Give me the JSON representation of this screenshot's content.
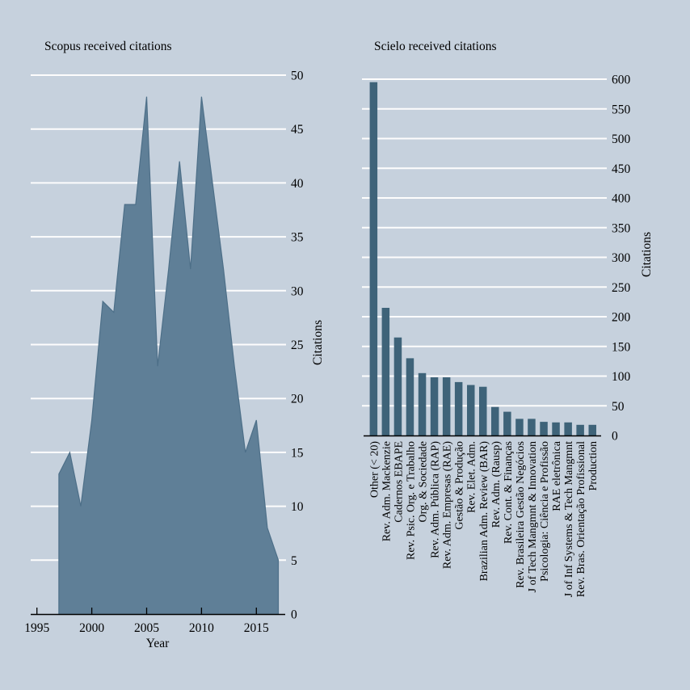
{
  "page": {
    "background": "#c6d1dd"
  },
  "colors": {
    "area_fill": "#5f7f97",
    "area_stroke": "#4d6f88",
    "bar_fill": "#3e6379",
    "gridline": "#fdfdfd",
    "axis": "#000000",
    "text": "#000000"
  },
  "chart_data": [
    {
      "type": "area",
      "title": "Scopus received citations",
      "xlabel": "Year",
      "ylabel": "Citations",
      "x": [
        1997,
        1998,
        1999,
        2000,
        2001,
        2002,
        2003,
        2004,
        2005,
        2006,
        2007,
        2008,
        2009,
        2010,
        2011,
        2012,
        2013,
        2014,
        2015,
        2016,
        2017
      ],
      "values": [
        13,
        15,
        10,
        18,
        29,
        28,
        38,
        38,
        48,
        23,
        32,
        42,
        32,
        48,
        40,
        32,
        23,
        15,
        18,
        8,
        5
      ],
      "xlim": [
        1995,
        2017.4
      ],
      "ylim": [
        0,
        50
      ],
      "xticks": [
        1995,
        2000,
        2005,
        2010,
        2015
      ],
      "yticks": [
        0,
        5,
        10,
        15,
        20,
        25,
        30,
        35,
        40,
        45,
        50
      ],
      "grid": "horizontal",
      "legend": "none"
    },
    {
      "type": "bar",
      "title": "Scielo received citations",
      "xlabel": "",
      "ylabel": "Citations",
      "categories": [
        "Other (< 20)",
        "Rev. Adm. Mackenzie",
        "Cadernos EBAPE",
        "Rev. Psic. Org. e Trabalho",
        "Org. & Sociedade",
        "Rev. Adm. Pública (RAP)",
        "Rev. Adm. Empresas (RAE)",
        "Gestão & Produção",
        "Rev. Elet. Adm.",
        "Brazilian Adm. Review (BAR)",
        "Rev. Adm. (Rausp)",
        "Rev. Cont. & Finanças",
        "Rev. Brasileira Gestão Negócios",
        "J of Tech Mangmnt & Innovation",
        "Psicologia: Ciência e Profissão",
        "RAE eletrônica",
        "J of Inf Systems & Tech Mangmnt",
        "Rev. Bras. Orientação Profissional",
        "Production"
      ],
      "values": [
        595,
        215,
        165,
        130,
        105,
        98,
        98,
        90,
        85,
        82,
        48,
        40,
        28,
        28,
        23,
        22,
        22,
        18,
        18
      ],
      "ylim": [
        0,
        600
      ],
      "yticks": [
        0,
        50,
        100,
        150,
        200,
        250,
        300,
        350,
        400,
        450,
        500,
        550,
        600
      ],
      "grid": "horizontal",
      "legend": "none"
    }
  ]
}
